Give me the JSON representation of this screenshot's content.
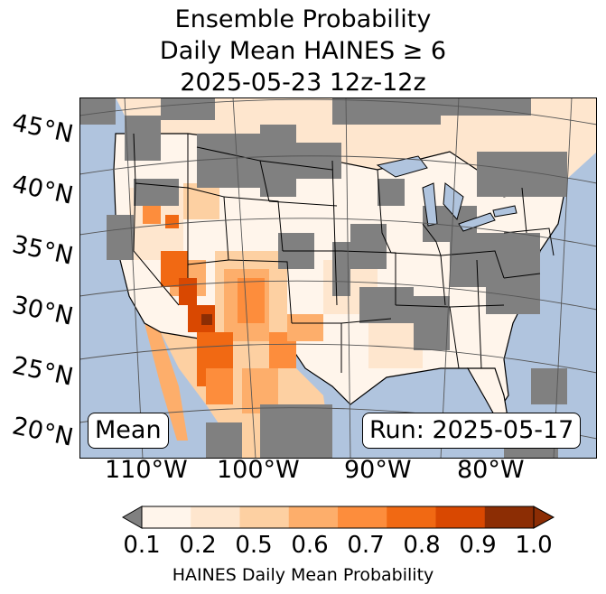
{
  "title": {
    "line1": "Ensemble Probability",
    "line2": "Daily Mean HAINES ≥ 6",
    "line3": "2025-05-23 12z-12z"
  },
  "map": {
    "lat_labels": [
      "45°N",
      "40°N",
      "35°N",
      "30°N",
      "25°N",
      "20°N"
    ],
    "lon_labels": [
      "110°W",
      "100°W",
      "90°W",
      "80°W"
    ],
    "mean_label": "Mean",
    "run_label": "Run: 2025-05-17",
    "colors": {
      "ocean": "#b0c4de",
      "no_data": "#808080",
      "land_outside": "#d3d3d3"
    }
  },
  "colorbar": {
    "label": "HAINES Daily Mean Probability",
    "ticks": [
      "0.1",
      "0.2",
      "0.5",
      "0.6",
      "0.7",
      "0.8",
      "0.9",
      "1.0"
    ],
    "colors": [
      "#fff5eb",
      "#fee6ce",
      "#fdd0a2",
      "#fdae6b",
      "#fd8d3c",
      "#f16913",
      "#d94801",
      "#8c2d04"
    ],
    "under_color": "#808080"
  }
}
